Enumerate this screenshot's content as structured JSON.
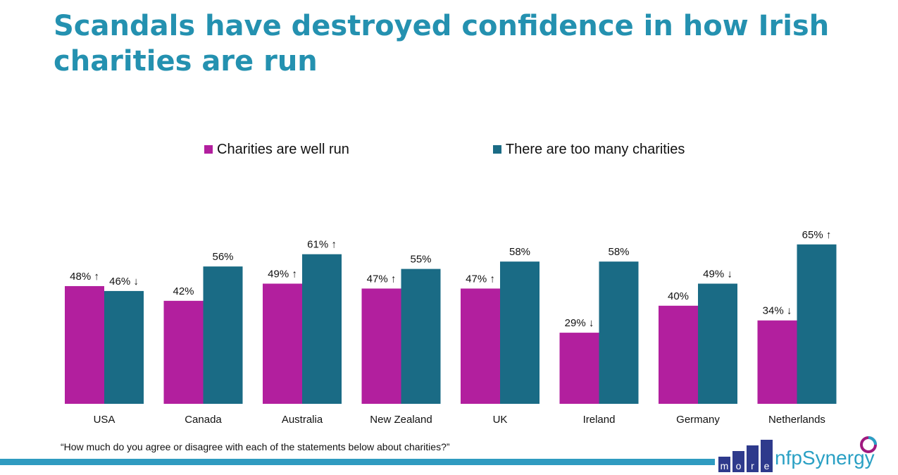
{
  "title": "Scandals have destroyed confidence in how Irish charities are run",
  "question": "“How much do you agree or disagree with each of the statements below about charities?”",
  "logo": {
    "more_letters": [
      "m",
      "o",
      "r",
      "e"
    ],
    "brand": "nfpSynergy"
  },
  "colors": {
    "title": "#2491b0",
    "series1": "#b21f9e",
    "series2": "#1a6b85",
    "footer_bar": "#2f9bc0"
  },
  "chart_data": {
    "type": "bar",
    "categories": [
      "USA",
      "Canada",
      "Australia",
      "New Zealand",
      "UK",
      "Ireland",
      "Germany",
      "Netherlands"
    ],
    "series": [
      {
        "name": "Charities are well run",
        "values": [
          48,
          42,
          49,
          47,
          47,
          29,
          40,
          34
        ],
        "labels": [
          "48% ↑",
          "42%",
          "49% ↑",
          "47% ↑",
          "47% ↑",
          "29% ↓",
          "40%",
          "34% ↓"
        ]
      },
      {
        "name": "There are too many charities",
        "values": [
          46,
          56,
          61,
          55,
          58,
          58,
          49,
          65
        ],
        "labels": [
          "46% ↓",
          "56%",
          "61% ↑",
          "55%",
          "58%",
          "58%",
          "49% ↓",
          "65% ↑"
        ]
      }
    ],
    "ylim": [
      0,
      100
    ],
    "grid": false,
    "legend": "top-center",
    "xlabel": "",
    "ylabel": ""
  }
}
